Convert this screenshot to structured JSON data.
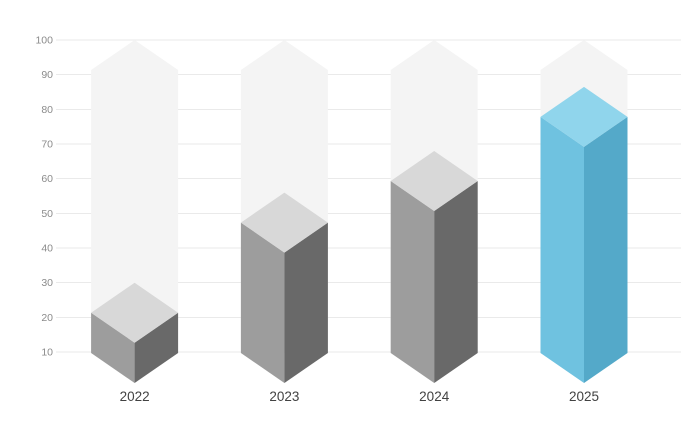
{
  "chart_data": {
    "type": "bar",
    "variant": "isometric-3d-prism-bars",
    "title": "",
    "xlabel": "",
    "ylabel": "",
    "categories": [
      "2022",
      "2023",
      "2024",
      "2025"
    ],
    "values": [
      30,
      56,
      68,
      86.5
    ],
    "value_reference": "apex of each 3D bar top face, estimated from gridlines",
    "highlight_index": 3,
    "ghost_bars": true,
    "ghost_value": 100,
    "ylim": [
      0,
      100
    ],
    "yticks": [
      10,
      20,
      30,
      40,
      50,
      60,
      70,
      80,
      90,
      100
    ],
    "grid": true,
    "legend": false,
    "colors": {
      "background": "#ffffff",
      "gridline": "#eaeaea",
      "tick_label": "#8b8b8b",
      "category_label": "#424242",
      "ghost": "#f4f4f4",
      "bar_default": {
        "top": "#d8d8d8",
        "left": "#9d9d9d",
        "right": "#696969"
      },
      "bar_highlight": {
        "top": "#90d5ec",
        "left": "#6fc2e0",
        "right": "#54a9c9"
      }
    }
  }
}
